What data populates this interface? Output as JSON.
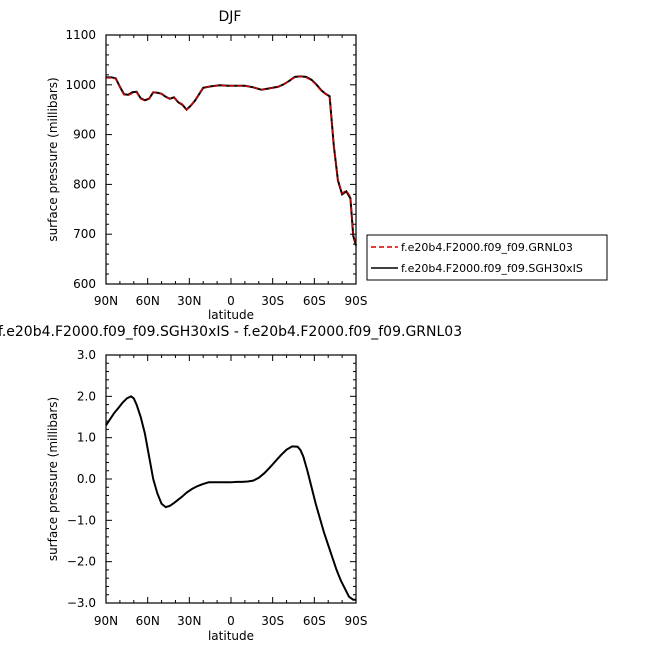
{
  "chart_data": [
    {
      "type": "line",
      "title": "DJF",
      "xlabel": "latitude",
      "ylabel": "surface pressure (millibars)",
      "x_ticks": [
        "90N",
        "60N",
        "30N",
        "0",
        "30S",
        "60S",
        "90S"
      ],
      "y_ticks": [
        "600",
        "700",
        "800",
        "900",
        "1000",
        "1100"
      ],
      "xlim": [
        90,
        -90
      ],
      "ylim": [
        600,
        1100
      ],
      "legend_position": "right",
      "series": [
        {
          "name": "f.e20b4.F2000.f09_f09.GRNL03",
          "color": "#cc0000",
          "dash": "dashed",
          "x": [
            90,
            86,
            83,
            80,
            77,
            74,
            71,
            68,
            65,
            62,
            59,
            56,
            53,
            50,
            47,
            44,
            41,
            38,
            35,
            32,
            29,
            26,
            20,
            14,
            8,
            2,
            -4,
            -10,
            -16,
            -22,
            -28,
            -34,
            -38,
            -42,
            -46,
            -50,
            -54,
            -58,
            -62,
            -65,
            -68,
            -71,
            -74,
            -77,
            -80,
            -83,
            -86,
            -88,
            -90
          ],
          "y": [
            1014,
            1014,
            1012,
            995,
            980,
            979,
            983,
            985,
            972,
            968,
            972,
            985,
            984,
            982,
            976,
            972,
            975,
            966,
            961,
            950,
            958,
            968,
            994,
            997,
            999,
            998,
            998,
            998,
            995,
            990,
            993,
            996,
            1001,
            1008,
            1015,
            1017,
            1015,
            1009,
            998,
            988,
            982,
            978,
            880,
            810,
            782,
            788,
            775,
            700,
            680
          ]
        },
        {
          "name": "f.e20b4.F2000.f09_f09.SGH30xIS",
          "color": "#000000",
          "dash": "solid",
          "x": [
            90,
            86,
            83,
            80,
            77,
            74,
            71,
            68,
            65,
            62,
            59,
            56,
            53,
            50,
            47,
            44,
            41,
            38,
            35,
            32,
            29,
            26,
            20,
            14,
            8,
            2,
            -4,
            -10,
            -16,
            -22,
            -28,
            -34,
            -38,
            -42,
            -46,
            -50,
            -54,
            -58,
            -62,
            -65,
            -68,
            -71,
            -74,
            -77,
            -80,
            -83,
            -86,
            -88,
            -90
          ],
          "y": [
            1015,
            1015,
            1013,
            996,
            981,
            980,
            985,
            986,
            973,
            969,
            972,
            985,
            984,
            982,
            976,
            972,
            975,
            965,
            960,
            950,
            958,
            968,
            994,
            997,
            999,
            998,
            998,
            998,
            995,
            990,
            993,
            996,
            1001,
            1008,
            1016,
            1017,
            1016,
            1010,
            999,
            989,
            982,
            977,
            878,
            808,
            780,
            786,
            772,
            697,
            677
          ]
        }
      ]
    },
    {
      "type": "line",
      "title": "f.e20b4.F2000.f09_f09.SGH30xIS - f.e20b4.F2000.f09_f09.GRNL03",
      "xlabel": "latitude",
      "ylabel": "surface pressure (millibars)",
      "x_ticks": [
        "90N",
        "60N",
        "30N",
        "0",
        "30S",
        "60S",
        "90S"
      ],
      "y_ticks": [
        "3.0",
        "2.0",
        "1.0",
        "0.0",
        "−1.0",
        "−2.0",
        "−3.0"
      ],
      "xlim": [
        90,
        -90
      ],
      "ylim": [
        -3,
        3
      ],
      "series": [
        {
          "color": "#000000",
          "x": [
            90,
            87,
            84,
            81,
            78,
            75,
            72,
            70,
            68,
            65,
            62,
            59,
            56,
            53,
            50,
            47,
            44,
            41,
            38,
            35,
            32,
            28,
            24,
            20,
            16,
            12,
            8,
            4,
            0,
            -4,
            -8,
            -12,
            -16,
            -20,
            -24,
            -28,
            -32,
            -36,
            -40,
            -44,
            -48,
            -50,
            -52,
            -55,
            -58,
            -61,
            -64,
            -67,
            -70,
            -73,
            -76,
            -79,
            -82,
            -85,
            -88,
            -90
          ],
          "y": [
            1.3,
            1.45,
            1.6,
            1.72,
            1.85,
            1.95,
            2.0,
            1.95,
            1.8,
            1.5,
            1.1,
            0.55,
            0.0,
            -0.35,
            -0.6,
            -0.68,
            -0.65,
            -0.58,
            -0.5,
            -0.42,
            -0.33,
            -0.24,
            -0.17,
            -0.12,
            -0.08,
            -0.08,
            -0.08,
            -0.08,
            -0.08,
            -0.07,
            -0.07,
            -0.06,
            -0.04,
            0.03,
            0.14,
            0.28,
            0.43,
            0.58,
            0.71,
            0.79,
            0.78,
            0.7,
            0.55,
            0.2,
            -0.2,
            -0.6,
            -0.95,
            -1.3,
            -1.6,
            -1.9,
            -2.2,
            -2.45,
            -2.65,
            -2.85,
            -2.92,
            -2.92
          ]
        }
      ]
    }
  ]
}
